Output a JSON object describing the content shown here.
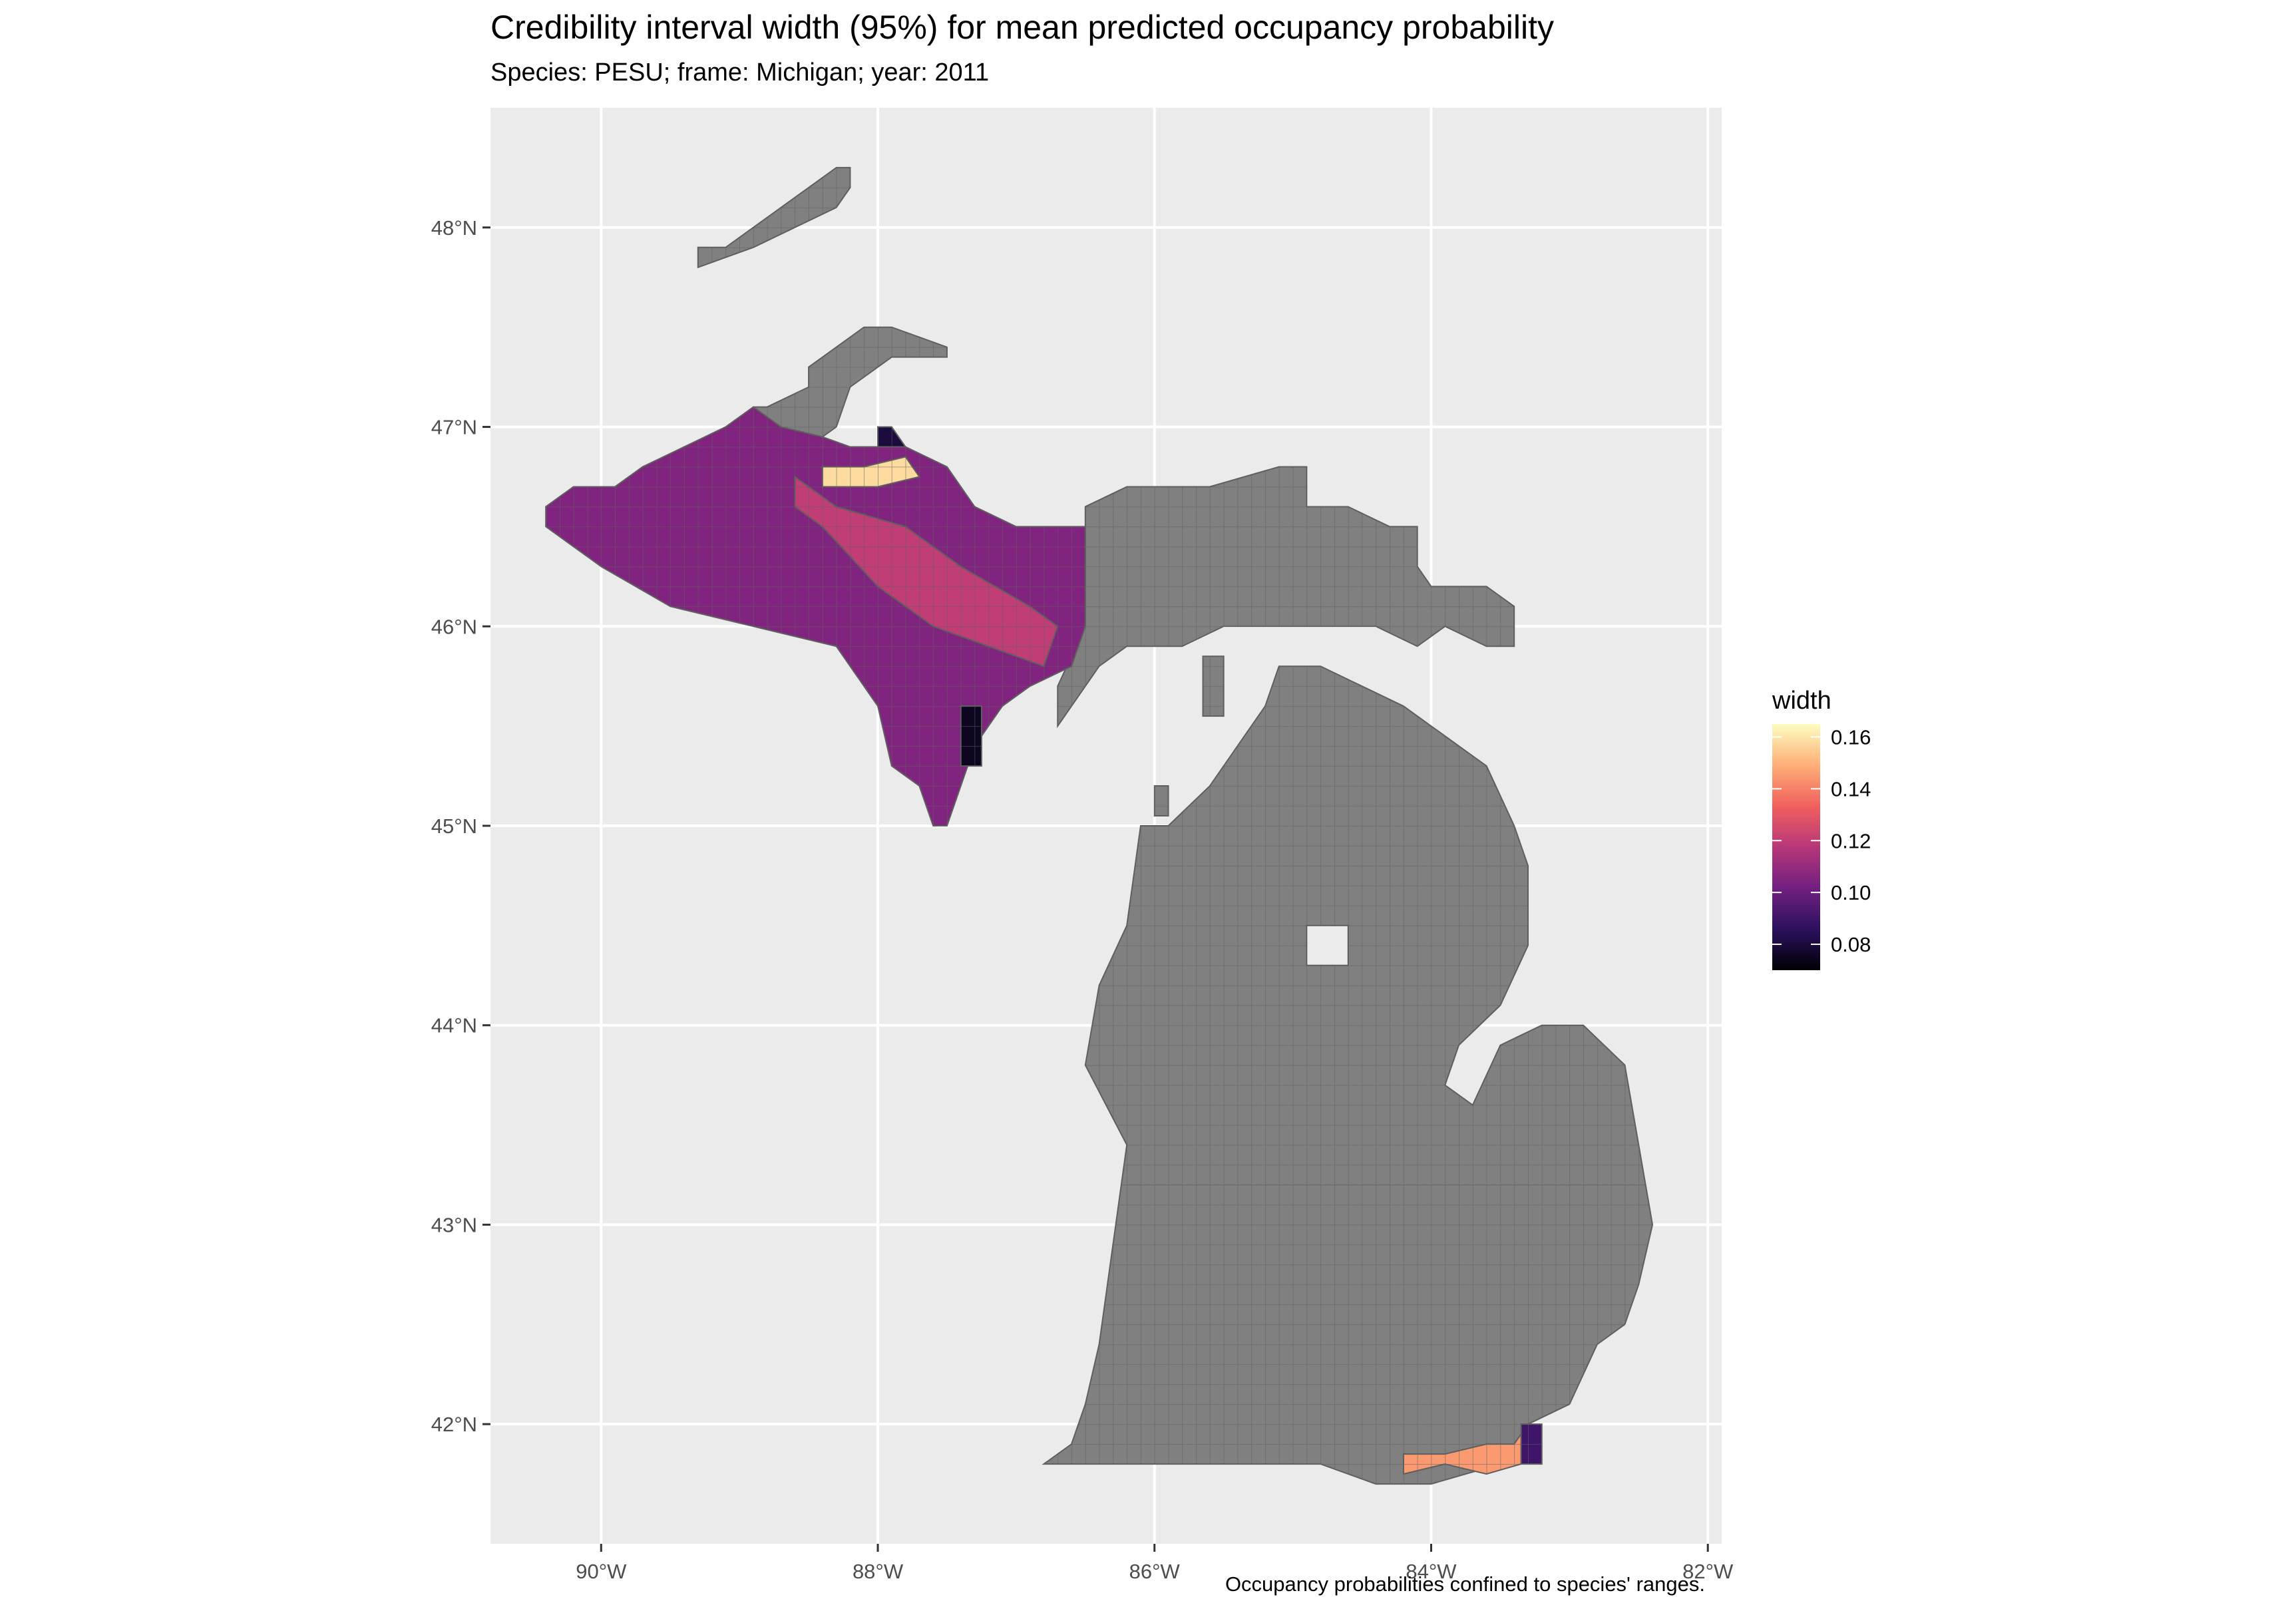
{
  "title": "Credibility interval width (95%) for mean predicted occupancy probability",
  "subtitle": "Species: PESU; frame: Michigan; year: 2011",
  "caption": "Occupancy probabilities confined to species' ranges.",
  "colors": {
    "panel_background": "#ebebeb",
    "grid": "#ffffff",
    "out_of_range_fill": "#808080",
    "cell_border": "#5f5f5f",
    "scale": [
      "#000004",
      "#2c115f",
      "#721f81",
      "#b73779",
      "#f1605d",
      "#feaf77",
      "#fcfdbf"
    ]
  },
  "chart_data": {
    "type": "heatmap",
    "x_range": [
      -90.8,
      81.9
    ],
    "y_range": [
      41.4,
      48.6
    ],
    "x_ticks": [
      {
        "value": -90,
        "label": "90°W"
      },
      {
        "value": -88,
        "label": "88°W"
      },
      {
        "value": -86,
        "label": "86°W"
      },
      {
        "value": -84,
        "label": "84°W"
      },
      {
        "value": -82,
        "label": "82°W"
      }
    ],
    "y_ticks": [
      {
        "value": 42,
        "label": "42°N"
      },
      {
        "value": 43,
        "label": "43°N"
      },
      {
        "value": 44,
        "label": "44°N"
      },
      {
        "value": 45,
        "label": "45°N"
      },
      {
        "value": 46,
        "label": "46°N"
      },
      {
        "value": 47,
        "label": "47°N"
      },
      {
        "value": 48,
        "label": "48°N"
      }
    ],
    "grid": true,
    "legend": {
      "title": "width",
      "placement": "right",
      "range": [
        0.07,
        0.165
      ],
      "ticks": [
        {
          "value": 0.16,
          "label": "0.16"
        },
        {
          "value": 0.14,
          "label": "0.14"
        },
        {
          "value": 0.12,
          "label": "0.12"
        },
        {
          "value": 0.1,
          "label": "0.10"
        },
        {
          "value": 0.08,
          "label": "0.08"
        }
      ]
    },
    "cell_size_deg": 0.1,
    "out_of_range_regions": [
      {
        "region": "isle-royale",
        "polygon": [
          [
            -89.3,
            47.9
          ],
          [
            -89.1,
            47.9
          ],
          [
            -88.3,
            48.3
          ],
          [
            -88.2,
            48.3
          ],
          [
            -88.2,
            48.2
          ],
          [
            -88.3,
            48.1
          ],
          [
            -88.9,
            47.9
          ],
          [
            -89.3,
            47.8
          ]
        ]
      },
      {
        "region": "keweenaw-peninsula",
        "polygon": [
          [
            -88.9,
            47.1
          ],
          [
            -88.8,
            47.1
          ],
          [
            -88.5,
            47.2
          ],
          [
            -88.5,
            47.3
          ],
          [
            -88.1,
            47.5
          ],
          [
            -87.9,
            47.5
          ],
          [
            -87.5,
            47.4
          ],
          [
            -87.5,
            47.35
          ],
          [
            -87.9,
            47.35
          ],
          [
            -88.0,
            47.3
          ],
          [
            -88.2,
            47.2
          ],
          [
            -88.3,
            47.0
          ],
          [
            -88.4,
            46.95
          ],
          [
            -88.7,
            47.0
          ],
          [
            -88.9,
            47.0
          ]
        ]
      },
      {
        "region": "eastern-upper-peninsula",
        "polygon": [
          [
            -86.5,
            46.6
          ],
          [
            -86.2,
            46.7
          ],
          [
            -85.6,
            46.7
          ],
          [
            -85.1,
            46.8
          ],
          [
            -84.9,
            46.8
          ],
          [
            -84.9,
            46.6
          ],
          [
            -84.6,
            46.6
          ],
          [
            -84.3,
            46.5
          ],
          [
            -84.1,
            46.5
          ],
          [
            -84.1,
            46.3
          ],
          [
            -84.0,
            46.2
          ],
          [
            -83.6,
            46.2
          ],
          [
            -83.4,
            46.1
          ],
          [
            -83.4,
            45.9
          ],
          [
            -83.6,
            45.9
          ],
          [
            -83.9,
            46.0
          ],
          [
            -84.1,
            45.9
          ],
          [
            -84.4,
            46.0
          ],
          [
            -84.6,
            46.0
          ],
          [
            -84.9,
            46.0
          ],
          [
            -85.3,
            46.0
          ],
          [
            -85.5,
            46.0
          ],
          [
            -85.8,
            45.9
          ],
          [
            -86.2,
            45.9
          ],
          [
            -86.4,
            45.8
          ],
          [
            -86.5,
            45.7
          ],
          [
            -86.7,
            45.5
          ],
          [
            -86.7,
            45.7
          ],
          [
            -86.5,
            46.0
          ]
        ]
      },
      {
        "region": "lower-peninsula",
        "polygon": [
          [
            -85.9,
            45.0
          ],
          [
            -85.6,
            45.2
          ],
          [
            -85.4,
            45.4
          ],
          [
            -85.2,
            45.6
          ],
          [
            -85.1,
            45.8
          ],
          [
            -85.0,
            45.8
          ],
          [
            -84.8,
            45.8
          ],
          [
            -84.5,
            45.7
          ],
          [
            -84.2,
            45.6
          ],
          [
            -84.0,
            45.5
          ],
          [
            -83.6,
            45.3
          ],
          [
            -83.4,
            45.0
          ],
          [
            -83.3,
            44.8
          ],
          [
            -83.3,
            44.4
          ],
          [
            -83.5,
            44.1
          ],
          [
            -83.8,
            43.9
          ],
          [
            -83.9,
            43.7
          ],
          [
            -83.7,
            43.6
          ],
          [
            -83.5,
            43.9
          ],
          [
            -83.2,
            44.0
          ],
          [
            -82.9,
            44.0
          ],
          [
            -82.6,
            43.8
          ],
          [
            -82.5,
            43.4
          ],
          [
            -82.4,
            43.0
          ],
          [
            -82.5,
            42.7
          ],
          [
            -82.6,
            42.5
          ],
          [
            -82.8,
            42.4
          ],
          [
            -83.0,
            42.1
          ],
          [
            -83.3,
            42.0
          ],
          [
            -83.5,
            41.8
          ],
          [
            -84.0,
            41.7
          ],
          [
            -84.4,
            41.7
          ],
          [
            -84.8,
            41.8
          ],
          [
            -85.6,
            41.8
          ],
          [
            -86.3,
            41.8
          ],
          [
            -86.8,
            41.8
          ],
          [
            -86.6,
            41.9
          ],
          [
            -86.5,
            42.1
          ],
          [
            -86.4,
            42.4
          ],
          [
            -86.3,
            42.9
          ],
          [
            -86.2,
            43.4
          ],
          [
            -86.5,
            43.8
          ],
          [
            -86.4,
            44.2
          ],
          [
            -86.2,
            44.5
          ],
          [
            -86.1,
            45.0
          ]
        ]
      },
      {
        "region": "beaver-island",
        "polygon": [
          [
            -85.65,
            45.55
          ],
          [
            -85.5,
            45.55
          ],
          [
            -85.5,
            45.85
          ],
          [
            -85.65,
            45.85
          ]
        ]
      },
      {
        "region": "north-manitou-island",
        "polygon": [
          [
            -86.0,
            45.05
          ],
          [
            -85.9,
            45.05
          ],
          [
            -85.9,
            45.2
          ],
          [
            -86.0,
            45.2
          ]
        ]
      }
    ],
    "lakes_within_land": [
      {
        "region": "houghton-lake",
        "polygon": [
          [
            -84.9,
            44.3
          ],
          [
            -84.6,
            44.3
          ],
          [
            -84.6,
            44.5
          ],
          [
            -84.9,
            44.5
          ]
        ]
      }
    ],
    "width_regions": [
      {
        "region": "western-upper-peninsula",
        "width": 0.105,
        "polygon": [
          [
            -90.4,
            46.6
          ],
          [
            -90.2,
            46.7
          ],
          [
            -89.9,
            46.7
          ],
          [
            -89.7,
            46.8
          ],
          [
            -89.4,
            46.9
          ],
          [
            -89.1,
            47.0
          ],
          [
            -88.9,
            47.1
          ],
          [
            -88.7,
            47.0
          ],
          [
            -88.4,
            46.95
          ],
          [
            -88.2,
            46.9
          ],
          [
            -87.8,
            46.9
          ],
          [
            -87.5,
            46.8
          ],
          [
            -87.3,
            46.6
          ],
          [
            -87.0,
            46.5
          ],
          [
            -86.5,
            46.5
          ],
          [
            -86.5,
            46.0
          ],
          [
            -86.6,
            45.8
          ],
          [
            -86.9,
            45.7
          ],
          [
            -87.1,
            45.6
          ],
          [
            -87.3,
            45.4
          ],
          [
            -87.4,
            45.2
          ],
          [
            -87.5,
            45.0
          ],
          [
            -87.6,
            45.0
          ],
          [
            -87.7,
            45.2
          ],
          [
            -87.9,
            45.3
          ],
          [
            -88.0,
            45.6
          ],
          [
            -88.3,
            45.9
          ],
          [
            -88.9,
            46.0
          ],
          [
            -89.5,
            46.1
          ],
          [
            -90.0,
            46.3
          ],
          [
            -90.2,
            46.4
          ],
          [
            -90.4,
            46.5
          ]
        ]
      },
      {
        "region": "marquette-shore",
        "width": 0.158,
        "polygon": [
          [
            -88.4,
            46.8
          ],
          [
            -88.1,
            46.8
          ],
          [
            -87.8,
            46.85
          ],
          [
            -87.7,
            46.75
          ],
          [
            -88.0,
            46.7
          ],
          [
            -88.4,
            46.7
          ]
        ]
      },
      {
        "region": "central-upper-peninsula",
        "width": 0.12,
        "polygon": [
          [
            -88.6,
            46.75
          ],
          [
            -88.3,
            46.6
          ],
          [
            -87.8,
            46.5
          ],
          [
            -87.4,
            46.3
          ],
          [
            -86.9,
            46.1
          ],
          [
            -86.7,
            46.0
          ],
          [
            -86.8,
            45.8
          ],
          [
            -87.2,
            45.9
          ],
          [
            -87.6,
            46.0
          ],
          [
            -88.0,
            46.2
          ],
          [
            -88.4,
            46.5
          ],
          [
            -88.6,
            46.6
          ]
        ]
      },
      {
        "region": "southern-michigan-border",
        "width": 0.145,
        "polygon": [
          [
            -84.2,
            41.75
          ],
          [
            -83.9,
            41.8
          ],
          [
            -83.6,
            41.75
          ],
          [
            -83.35,
            41.8
          ],
          [
            -83.3,
            42.0
          ],
          [
            -83.4,
            41.9
          ],
          [
            -83.6,
            41.9
          ],
          [
            -83.9,
            41.85
          ],
          [
            -84.2,
            41.85
          ]
        ]
      },
      {
        "region": "detroit-river",
        "width": 0.09,
        "polygon": [
          [
            -83.35,
            41.8
          ],
          [
            -83.2,
            41.8
          ],
          [
            -83.2,
            42.0
          ],
          [
            -83.35,
            42.0
          ]
        ]
      },
      {
        "region": "keweenaw-rim",
        "width": 0.08,
        "polygon": [
          [
            -88.0,
            46.9
          ],
          [
            -87.8,
            46.9
          ],
          [
            -87.9,
            47.0
          ],
          [
            -88.0,
            47.0
          ]
        ]
      },
      {
        "region": "escanaba-shore",
        "width": 0.075,
        "polygon": [
          [
            -87.4,
            45.3
          ],
          [
            -87.25,
            45.3
          ],
          [
            -87.25,
            45.6
          ],
          [
            -87.4,
            45.6
          ]
        ]
      }
    ]
  }
}
